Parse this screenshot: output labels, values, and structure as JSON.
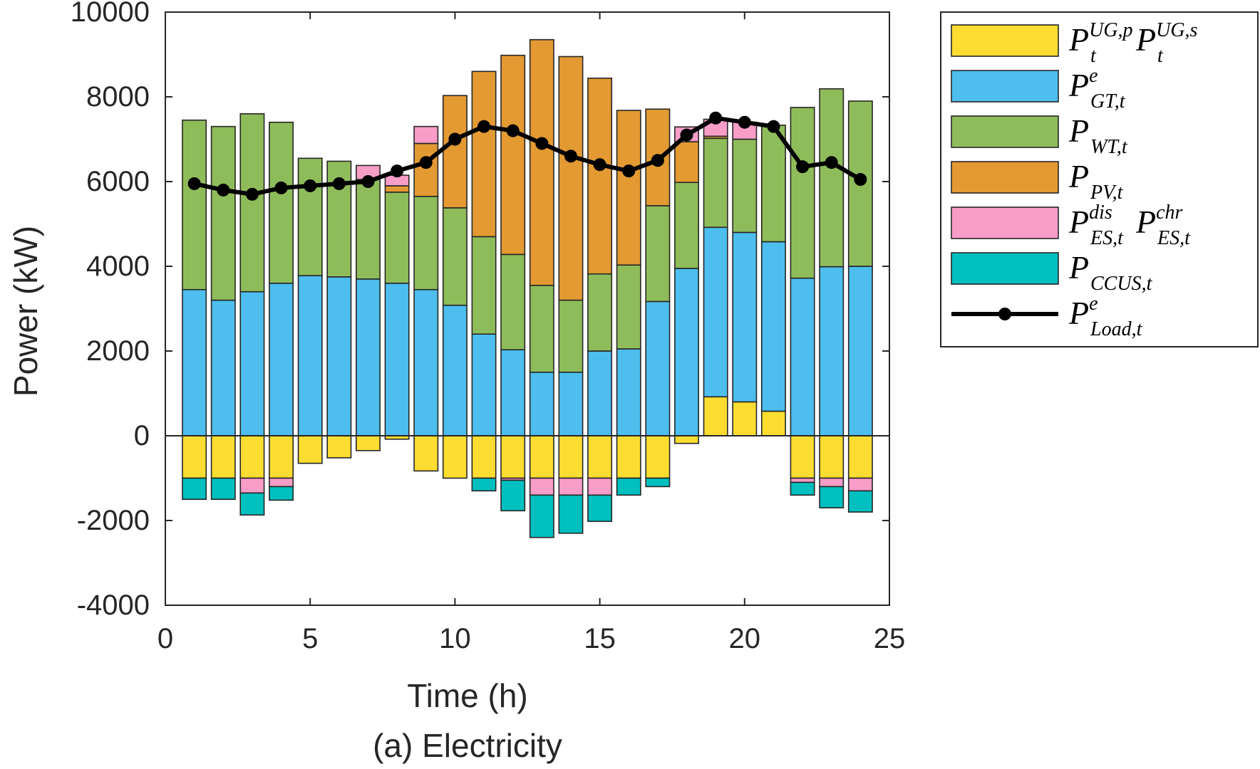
{
  "chart_data": {
    "type": "bar",
    "stacked": true,
    "title": "(a) Electricity",
    "xlabel": "Time (h)",
    "ylabel": "Power (kW)",
    "xlim": [
      0,
      25
    ],
    "ylim": [
      -4000,
      10000
    ],
    "xticks": [
      "0",
      "5",
      "10",
      "15",
      "20",
      "25"
    ],
    "yticks": [
      "10000",
      "8000",
      "6000",
      "4000",
      "2000",
      "0",
      "-2000",
      "-4000"
    ],
    "grid": false,
    "legend_position": "outside-right",
    "x": [
      1,
      2,
      3,
      4,
      5,
      6,
      7,
      8,
      9,
      10,
      11,
      12,
      13,
      14,
      15,
      16,
      17,
      18,
      19,
      20,
      21,
      22,
      23,
      24
    ],
    "series": [
      {
        "key": "ug",
        "color": "#FDDD31",
        "values": [
          -1000,
          -1000,
          -1000,
          -1000,
          -650,
          -520,
          -350,
          -80,
          -830,
          -1000,
          -1000,
          -1000,
          -1000,
          -1000,
          -1000,
          -1000,
          -1000,
          -180,
          920,
          800,
          580,
          -1000,
          -1000,
          -1000
        ]
      },
      {
        "key": "gt",
        "color": "#4DBEEE",
        "values": [
          3450,
          3200,
          3400,
          3600,
          3780,
          3750,
          3700,
          3600,
          3450,
          3080,
          2400,
          2030,
          1500,
          1500,
          2000,
          2050,
          3170,
          3950,
          4000,
          4000,
          4000,
          3720,
          3990,
          4000
        ]
      },
      {
        "key": "wt",
        "color": "#8FBC5A",
        "values": [
          4000,
          4100,
          4200,
          3800,
          2770,
          2730,
          2350,
          2150,
          2200,
          2300,
          2300,
          2250,
          2050,
          1700,
          1820,
          1980,
          2260,
          2030,
          2100,
          2200,
          2750,
          4030,
          4200,
          3900
        ]
      },
      {
        "key": "pv",
        "color": "#E39A33",
        "values": [
          0,
          0,
          0,
          0,
          0,
          0,
          0,
          150,
          1250,
          2650,
          3900,
          4700,
          5800,
          5750,
          4620,
          3650,
          2280,
          960,
          50,
          0,
          0,
          0,
          0,
          0
        ]
      },
      {
        "key": "esd",
        "color": "#F79DC8",
        "values": [
          0,
          0,
          0,
          0,
          0,
          0,
          330,
          250,
          400,
          0,
          0,
          0,
          0,
          0,
          0,
          0,
          0,
          350,
          400,
          400,
          0,
          0,
          0,
          0
        ]
      },
      {
        "key": "esc",
        "color": "#F79DC8",
        "values": [
          0,
          0,
          -350,
          -200,
          0,
          0,
          0,
          0,
          0,
          0,
          0,
          -50,
          -400,
          -400,
          -400,
          0,
          0,
          0,
          0,
          0,
          0,
          -100,
          -200,
          -300
        ]
      },
      {
        "key": "ccus",
        "color": "#00BFBF",
        "values": [
          -500,
          -500,
          -520,
          -320,
          0,
          0,
          0,
          0,
          0,
          0,
          -300,
          -720,
          -1000,
          -900,
          -620,
          -400,
          -200,
          0,
          0,
          0,
          0,
          -300,
          -500,
          -500
        ]
      }
    ],
    "load": {
      "key": "load",
      "color": "#000000",
      "values": [
        5950,
        5800,
        5700,
        5850,
        5900,
        5950,
        6000,
        6250,
        6450,
        7000,
        7300,
        7200,
        6900,
        6600,
        6400,
        6250,
        6500,
        7100,
        7500,
        7400,
        7300,
        6350,
        6450,
        6050
      ]
    },
    "legend": [
      {
        "color": "#FDDD31",
        "type": "box",
        "base": "P",
        "sub": "t",
        "sup": "UG,p",
        "base2": "P",
        "sub2": "t",
        "sup2": "UG,s"
      },
      {
        "color": "#4DBEEE",
        "type": "box",
        "base": "P",
        "sub": "GT,t",
        "sup": "e"
      },
      {
        "color": "#8FBC5A",
        "type": "box",
        "base": "P",
        "sub": "WT,t",
        "sup": ""
      },
      {
        "color": "#E39A33",
        "type": "box",
        "base": "P",
        "sub": "PV,t",
        "sup": ""
      },
      {
        "color": "#F79DC8",
        "type": "box",
        "base": "P",
        "sub": "ES,t",
        "sup": "dis",
        "base2": "P",
        "sub2": "ES,t",
        "sup2": "chr"
      },
      {
        "color": "#00BFBF",
        "type": "box",
        "base": "P",
        "sub": "CCUS,t",
        "sup": ""
      },
      {
        "color": "#000000",
        "type": "line",
        "base": "P",
        "sub": "Load,t",
        "sup": "e"
      }
    ]
  }
}
